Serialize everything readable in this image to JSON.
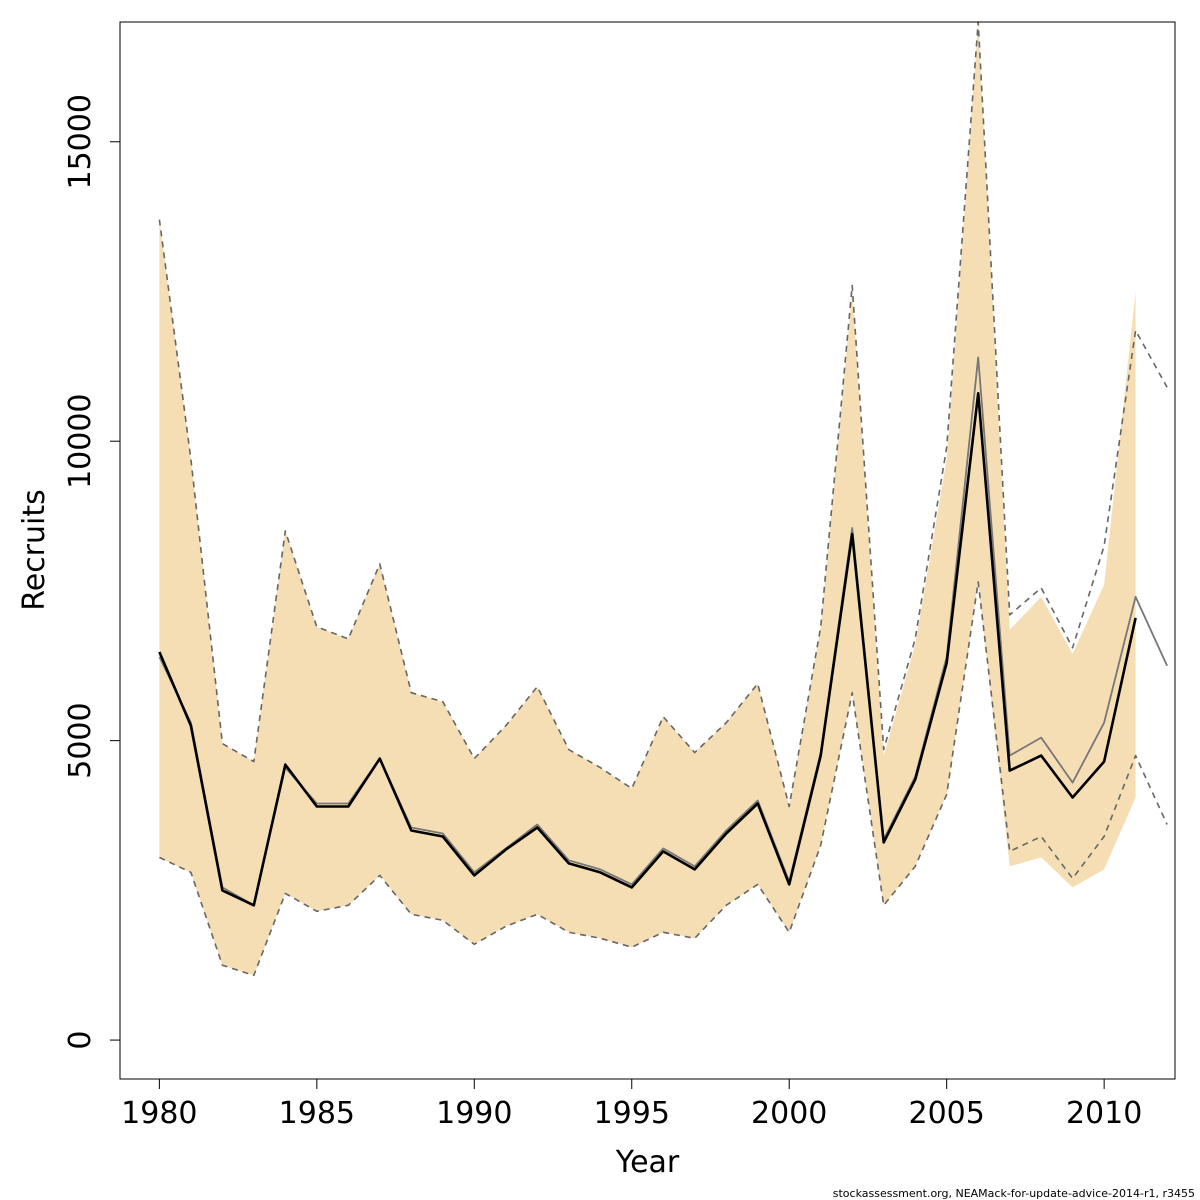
{
  "chart_data": {
    "type": "line",
    "xlabel": "Year",
    "ylabel": "Recruits",
    "xlim": [
      1978.75,
      2012.25
    ],
    "ylim": [
      -650,
      17000
    ],
    "x_ticks": [
      1980,
      1985,
      1990,
      1995,
      2000,
      2005,
      2010
    ],
    "y_ticks": [
      0,
      5000,
      10000,
      15000
    ],
    "x_tick_labels": [
      "1980",
      "1985",
      "1990",
      "1995",
      "2000",
      "2005",
      "2010"
    ],
    "y_tick_labels": [
      "0",
      "5000",
      "10000",
      "15000"
    ],
    "grid": false,
    "legend": null,
    "colors": {
      "band": "#f5deb3",
      "estimate": "#000000",
      "reference": "#777777",
      "reference_bounds": "#666666"
    },
    "series": [
      {
        "role": "confidence-band",
        "x": [
          1980,
          1981,
          1982,
          1983,
          1984,
          1985,
          1986,
          1987,
          1988,
          1989,
          1990,
          1991,
          1992,
          1993,
          1994,
          1995,
          1996,
          1997,
          1998,
          1999,
          2000,
          2001,
          2002,
          2003,
          2004,
          2005,
          2006,
          2007,
          2008,
          2009,
          2010,
          2011
        ],
        "upper": [
          13700,
          9700,
          4950,
          4650,
          8500,
          6900,
          6700,
          7950,
          5800,
          5650,
          4700,
          5250,
          5900,
          4850,
          4550,
          4200,
          5400,
          4800,
          5300,
          5950,
          3900,
          6900,
          12500,
          4750,
          6600,
          9700,
          17000,
          6850,
          7400,
          6450,
          7600,
          12500
        ],
        "lower": [
          3050,
          2800,
          1250,
          1080,
          2450,
          2150,
          2250,
          2750,
          2100,
          2000,
          1600,
          1900,
          2100,
          1800,
          1700,
          1550,
          1800,
          1700,
          2250,
          2600,
          1800,
          3250,
          5800,
          2250,
          2900,
          4100,
          7650,
          2900,
          3050,
          2550,
          2850,
          4050
        ]
      },
      {
        "role": "estimate",
        "x": [
          1980,
          1981,
          1982,
          1983,
          1984,
          1985,
          1986,
          1987,
          1988,
          1989,
          1990,
          1991,
          1992,
          1993,
          1994,
          1995,
          1996,
          1997,
          1998,
          1999,
          2000,
          2001,
          2002,
          2003,
          2004,
          2005,
          2006,
          2007,
          2008,
          2009,
          2010,
          2011
        ],
        "values": [
          6480,
          5250,
          2500,
          2250,
          4600,
          3900,
          3900,
          4700,
          3500,
          3400,
          2750,
          3180,
          3550,
          2950,
          2800,
          2550,
          3150,
          2850,
          3450,
          3950,
          2600,
          4750,
          8450,
          3300,
          4350,
          6300,
          10800,
          4500,
          4750,
          4050,
          4650,
          7050
        ]
      },
      {
        "role": "reference",
        "x": [
          1980,
          1981,
          1982,
          1983,
          1984,
          1985,
          1986,
          1987,
          1988,
          1989,
          1990,
          1991,
          1992,
          1993,
          1994,
          1995,
          1996,
          1997,
          1998,
          1999,
          2000,
          2001,
          2002,
          2003,
          2004,
          2005,
          2006,
          2007,
          2008,
          2009,
          2010,
          2011,
          2012
        ],
        "values": [
          6400,
          5300,
          2550,
          2250,
          4550,
          3950,
          3950,
          4700,
          3550,
          3450,
          2800,
          3200,
          3600,
          3000,
          2850,
          2600,
          3200,
          2900,
          3500,
          4000,
          2650,
          4800,
          8550,
          3350,
          4400,
          6400,
          11400,
          4750,
          5050,
          4300,
          5300,
          7400,
          6250
        ]
      },
      {
        "role": "reference-upper",
        "x": [
          1980,
          1981,
          1982,
          1983,
          1984,
          1985,
          1986,
          1987,
          1988,
          1989,
          1990,
          1991,
          1992,
          1993,
          1994,
          1995,
          1996,
          1997,
          1998,
          1999,
          2000,
          2001,
          2002,
          2003,
          2004,
          2005,
          2006,
          2007,
          2008,
          2009,
          2010,
          2011,
          2012
        ],
        "values": [
          13700,
          9700,
          4950,
          4650,
          8500,
          6900,
          6700,
          7950,
          5800,
          5650,
          4700,
          5250,
          5900,
          4850,
          4550,
          4200,
          5400,
          4800,
          5300,
          5950,
          3900,
          6900,
          12600,
          4850,
          6700,
          9900,
          17000,
          7100,
          7550,
          6550,
          8250,
          11850,
          10900
        ]
      },
      {
        "role": "reference-lower",
        "x": [
          1980,
          1981,
          1982,
          1983,
          1984,
          1985,
          1986,
          1987,
          1988,
          1989,
          1990,
          1991,
          1992,
          1993,
          1994,
          1995,
          1996,
          1997,
          1998,
          1999,
          2000,
          2001,
          2002,
          2003,
          2004,
          2005,
          2006,
          2007,
          2008,
          2009,
          2010,
          2011,
          2012
        ],
        "values": [
          3050,
          2800,
          1250,
          1080,
          2450,
          2150,
          2250,
          2750,
          2100,
          2000,
          1600,
          1900,
          2100,
          1800,
          1700,
          1550,
          1800,
          1700,
          2250,
          2600,
          1800,
          3250,
          5800,
          2250,
          2900,
          4100,
          7650,
          3150,
          3400,
          2700,
          3400,
          4750,
          3600
        ]
      }
    ]
  },
  "footer": {
    "note": "stockassessment.org, NEAMack-for-update-advice-2014-r1, r3455"
  }
}
